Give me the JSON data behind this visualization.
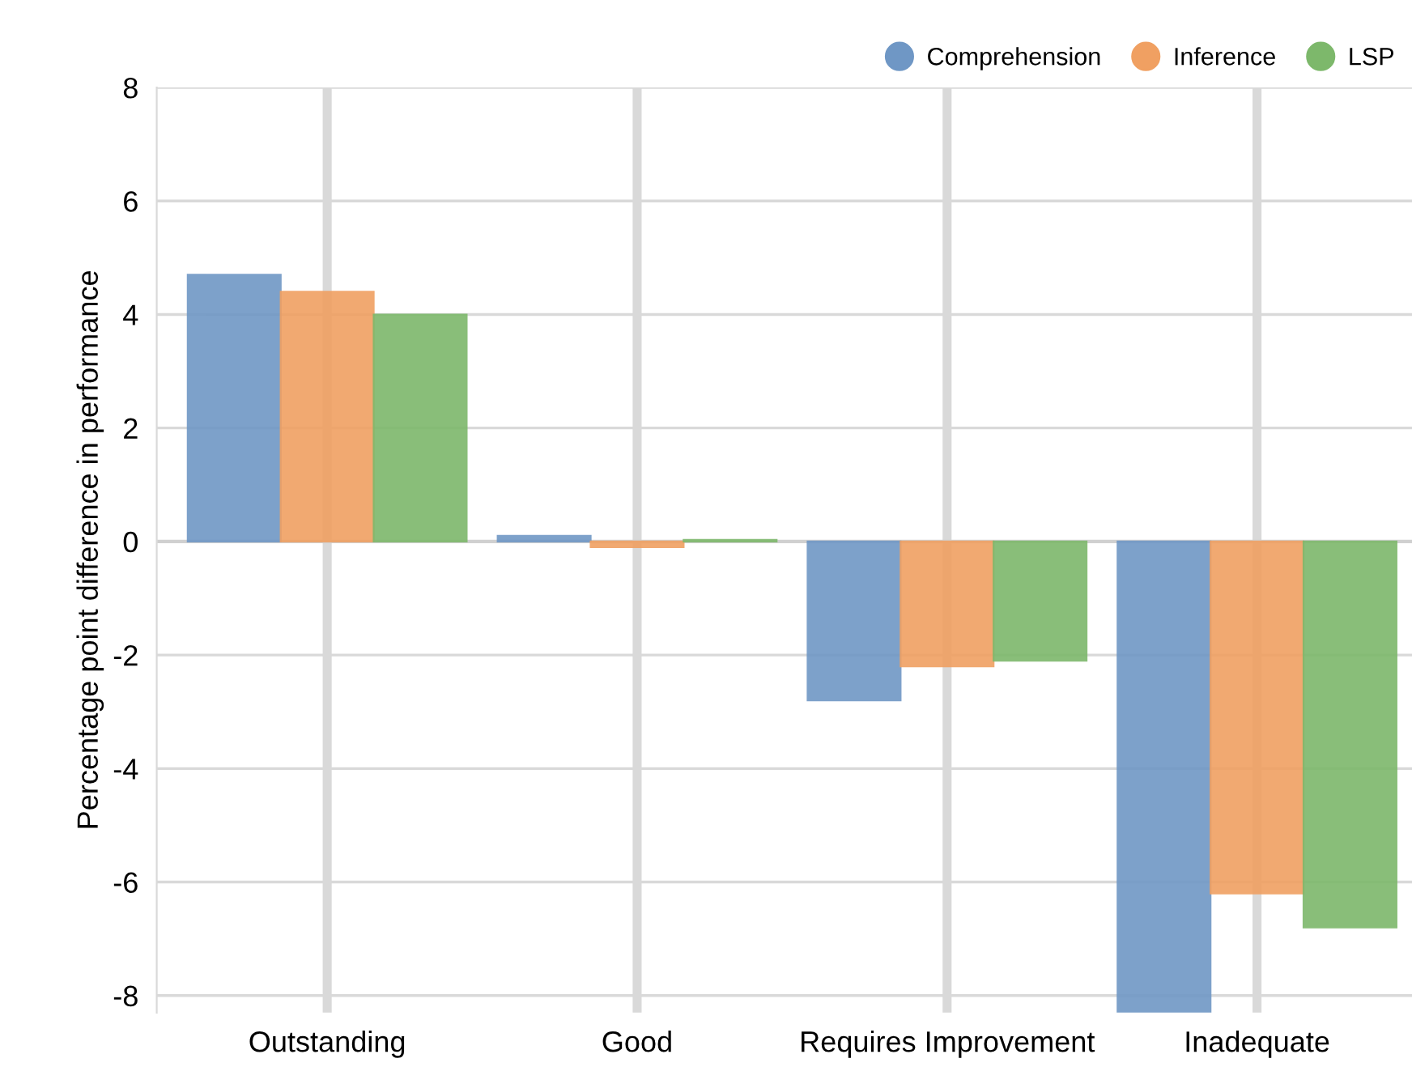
{
  "chart_data": {
    "type": "bar",
    "ylabel": "Percentage point difference in performance",
    "categories": [
      "Outstanding",
      "Good",
      "Requires Improvement",
      "Inadequate"
    ],
    "series": [
      {
        "name": "Comprehension",
        "color": "#6f97c5",
        "values": [
          4.7,
          0.1,
          -2.8,
          -8.3
        ]
      },
      {
        "name": "Inference",
        "color": "#f0a062",
        "values": [
          4.4,
          -0.1,
          -2.2,
          -6.2
        ]
      },
      {
        "name": "LSP",
        "color": "#7db86b",
        "values": [
          4.0,
          0.03,
          -2.1,
          -6.8
        ]
      }
    ],
    "ylim": [
      -8.3,
      8
    ],
    "yticks": [
      -8,
      -6,
      -4,
      -2,
      0,
      2,
      4,
      6,
      8
    ],
    "grid": true,
    "legend": "top right"
  }
}
